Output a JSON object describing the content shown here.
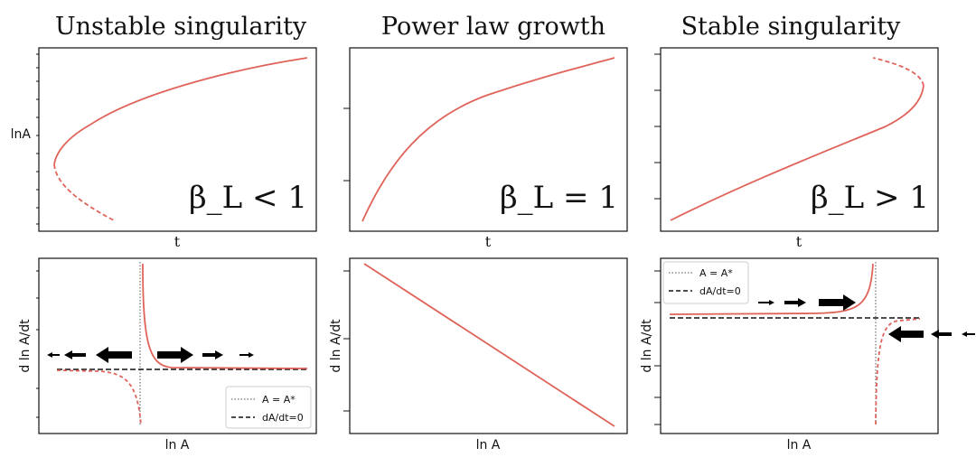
{
  "colors": {
    "curve": "#e0635a",
    "axis": "#111111",
    "ref": "#333333"
  },
  "chart_data": [
    {
      "type": "line",
      "panel": "top-left",
      "title": "Unstable singularity",
      "xlabel": "t",
      "ylabel": "lnA",
      "annotation": "β_L < 1",
      "series": [
        {
          "name": "solid",
          "style": "solid",
          "x": [
            0.05,
            0.1,
            0.2,
            0.35,
            0.5,
            0.7,
            0.9,
            1.0
          ],
          "y": [
            0.28,
            0.38,
            0.5,
            0.62,
            0.72,
            0.83,
            0.93,
            0.98
          ]
        },
        {
          "name": "dashed",
          "style": "dashed",
          "x": [
            0.05,
            0.08,
            0.15,
            0.22
          ],
          "y": [
            0.28,
            0.18,
            0.1,
            0.03
          ]
        }
      ]
    },
    {
      "type": "line",
      "panel": "top-middle",
      "title": "Power law growth",
      "xlabel": "t",
      "annotation": "β_L = 1",
      "series": [
        {
          "name": "solid",
          "style": "solid",
          "x": [
            0.0,
            0.1,
            0.25,
            0.5,
            0.75,
            1.0
          ],
          "y": [
            0.0,
            0.32,
            0.52,
            0.72,
            0.86,
            1.0
          ]
        }
      ]
    },
    {
      "type": "line",
      "panel": "top-right",
      "title": "Stable singularity",
      "xlabel": "t",
      "annotation": "β_L > 1",
      "series": [
        {
          "name": "solid",
          "style": "solid",
          "x": [
            0.0,
            0.3,
            0.6,
            0.8,
            0.95,
            1.0
          ],
          "y": [
            0.0,
            0.22,
            0.45,
            0.62,
            0.78,
            0.85
          ]
        },
        {
          "name": "dashed",
          "style": "dashed",
          "x": [
            1.0,
            0.95,
            0.82
          ],
          "y": [
            0.85,
            0.95,
            1.0
          ]
        }
      ]
    },
    {
      "type": "line",
      "panel": "bottom-left",
      "xlabel": "ln A",
      "ylabel": "d ln A/dt",
      "legend": {
        "position": "bottom-right",
        "entries": [
          "A = A*",
          "dA/dt=0"
        ]
      },
      "reference": {
        "vertical_at": "A*",
        "horizontal": "dA/dt=0"
      },
      "arrows": {
        "left": [
          "large",
          "medium",
          "small"
        ],
        "right": [
          "large",
          "medium",
          "small"
        ]
      }
    },
    {
      "type": "line",
      "panel": "bottom-middle",
      "xlabel": "ln A",
      "ylabel": "d ln A/dt",
      "series": [
        {
          "name": "solid",
          "style": "solid",
          "x": [
            0.0,
            1.0
          ],
          "y": [
            1.0,
            0.0
          ]
        }
      ]
    },
    {
      "type": "line",
      "panel": "bottom-right",
      "xlabel": "ln A",
      "ylabel": "d ln A/dt",
      "legend": {
        "position": "top-left",
        "entries": [
          "A = A*",
          "dA/dt=0"
        ]
      },
      "reference": {
        "vertical_at": "A*",
        "horizontal": "dA/dt=0"
      },
      "arrows": {
        "right": [
          "small",
          "medium",
          "large"
        ],
        "left": [
          "large",
          "medium",
          "small"
        ]
      }
    }
  ]
}
